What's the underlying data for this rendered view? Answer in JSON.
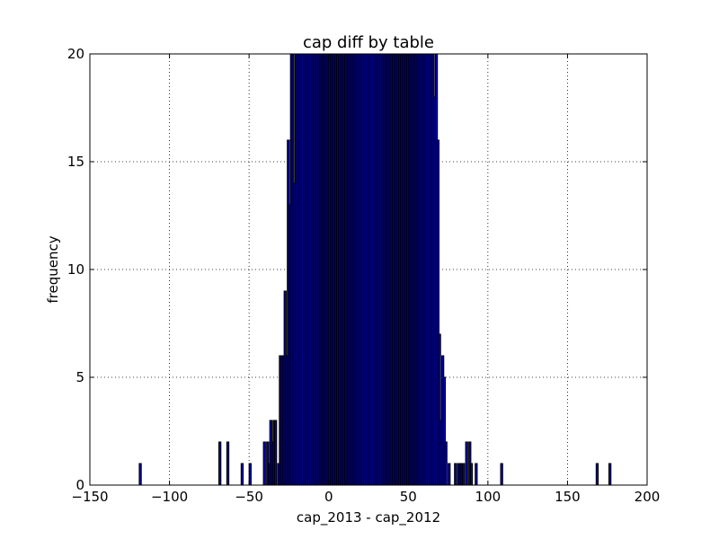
{
  "chart_data": {
    "type": "bar",
    "title": "cap diff by table",
    "xlabel": "cap_2013 - cap_2012",
    "ylabel": "frequency",
    "xlim": [
      -150,
      200
    ],
    "ylim": [
      0,
      20
    ],
    "xticks": [
      -150,
      -100,
      -50,
      0,
      50,
      100,
      150,
      200
    ],
    "yticks": [
      0,
      5,
      10,
      15,
      20
    ],
    "xtick_labels": [
      "−150",
      "−100",
      "−50",
      "0",
      "50",
      "100",
      "150",
      "200"
    ],
    "ytick_labels": [
      "0",
      "5",
      "10",
      "15",
      "20"
    ],
    "grid": true,
    "bin_width": 1.3,
    "bar_color": "#0000b8",
    "x": [
      -119,
      -69,
      -64,
      -55,
      -50,
      -41,
      -39,
      -38,
      -37,
      -36,
      -35,
      -34,
      -32,
      -31,
      -30,
      -29,
      -28,
      -27,
      -26,
      -25,
      -24,
      -23,
      -22,
      -21,
      -20,
      -19,
      -18,
      -17,
      -16,
      -15,
      -14,
      -13,
      -12,
      -11,
      -10,
      -9,
      -8,
      -7,
      -6,
      -5,
      -4,
      -3,
      -2,
      -1,
      0,
      1,
      2,
      3,
      4,
      5,
      6,
      7,
      8,
      9,
      10,
      11,
      12,
      13,
      14,
      15,
      16,
      17,
      18,
      19,
      20,
      21,
      22,
      23,
      24,
      25,
      26,
      27,
      28,
      29,
      30,
      31,
      32,
      33,
      34,
      35,
      36,
      37,
      38,
      39,
      40,
      41,
      42,
      43,
      44,
      45,
      46,
      47,
      48,
      49,
      50,
      51,
      52,
      53,
      54,
      55,
      56,
      57,
      58,
      59,
      60,
      61,
      62,
      63,
      64,
      65,
      66,
      67,
      68,
      69,
      70,
      71,
      72,
      73,
      75,
      79,
      81,
      82,
      83,
      84,
      86,
      88,
      89,
      92,
      108,
      168,
      176
    ],
    "values": [
      1,
      2,
      2,
      1,
      1,
      2,
      2,
      1,
      3,
      2,
      3,
      3,
      1,
      6,
      6,
      6,
      9,
      6,
      16,
      13,
      20,
      20,
      14,
      20,
      20,
      20,
      20,
      20,
      20,
      20,
      20,
      20,
      20,
      20,
      20,
      20,
      20,
      20,
      20,
      20,
      20,
      20,
      20,
      20,
      20,
      20,
      20,
      20,
      20,
      20,
      20,
      20,
      20,
      20,
      20,
      20,
      20,
      20,
      20,
      20,
      20,
      20,
      20,
      20,
      20,
      20,
      20,
      20,
      20,
      20,
      20,
      20,
      20,
      20,
      20,
      20,
      20,
      20,
      20,
      20,
      20,
      20,
      20,
      20,
      20,
      20,
      20,
      20,
      20,
      20,
      20,
      20,
      20,
      20,
      20,
      20,
      20,
      20,
      20,
      20,
      20,
      20,
      20,
      20,
      20,
      20,
      20,
      20,
      20,
      20,
      18,
      20,
      16,
      7,
      3,
      6,
      5,
      2,
      1,
      1,
      1,
      1,
      1,
      1,
      2,
      2,
      1,
      1,
      1,
      1,
      1
    ]
  }
}
